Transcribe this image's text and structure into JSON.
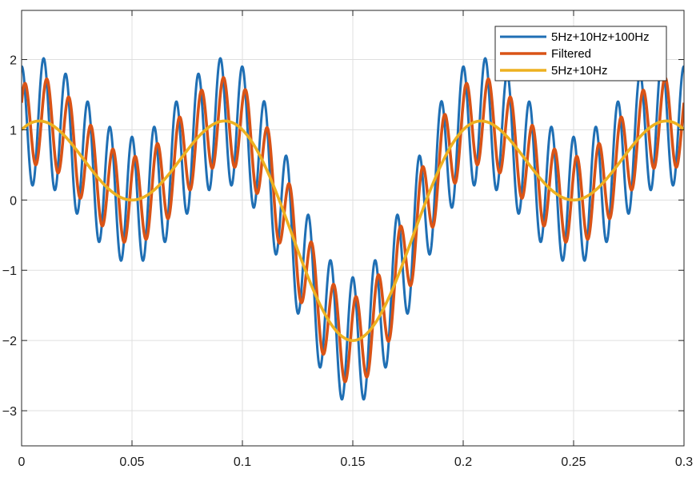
{
  "chart_data": {
    "type": "line",
    "title": "",
    "xlabel": "",
    "ylabel": "",
    "xlim": [
      0,
      0.3
    ],
    "ylim": [
      -3.5,
      2.7
    ],
    "grid": true,
    "legend_position": "top-right",
    "x_ticks": [
      0,
      0.05,
      0.1,
      0.15,
      0.2,
      0.25,
      0.3
    ],
    "x_tick_labels": [
      "0",
      "0.05",
      "0.1",
      "0.15",
      "0.2",
      "0.25",
      "0.3"
    ],
    "y_ticks": [
      2,
      1,
      0,
      -1,
      -2,
      -3
    ],
    "y_tick_labels": [
      "2",
      "1",
      "0",
      "−1",
      "−2",
      "−3"
    ],
    "series": [
      {
        "name": "5Hz+10Hz+100Hz",
        "color": "#1f6fb4",
        "stroke": 3,
        "formula": "sin(2*pi*5*t)+cos(2*pi*10*t)+0.9*cos(2*pi*100*t)"
      },
      {
        "name": "Filtered",
        "color": "#d95316",
        "stroke": 3.6,
        "formula": "sin(2*pi*5*t)+cos(2*pi*10*t)+0.62*cos(2*pi*100*t-0.9)"
      },
      {
        "name": "5Hz+10Hz",
        "color": "#edb120",
        "stroke": 3.6,
        "formula": "sin(2*pi*5*t)+cos(2*pi*10*t)"
      }
    ]
  }
}
